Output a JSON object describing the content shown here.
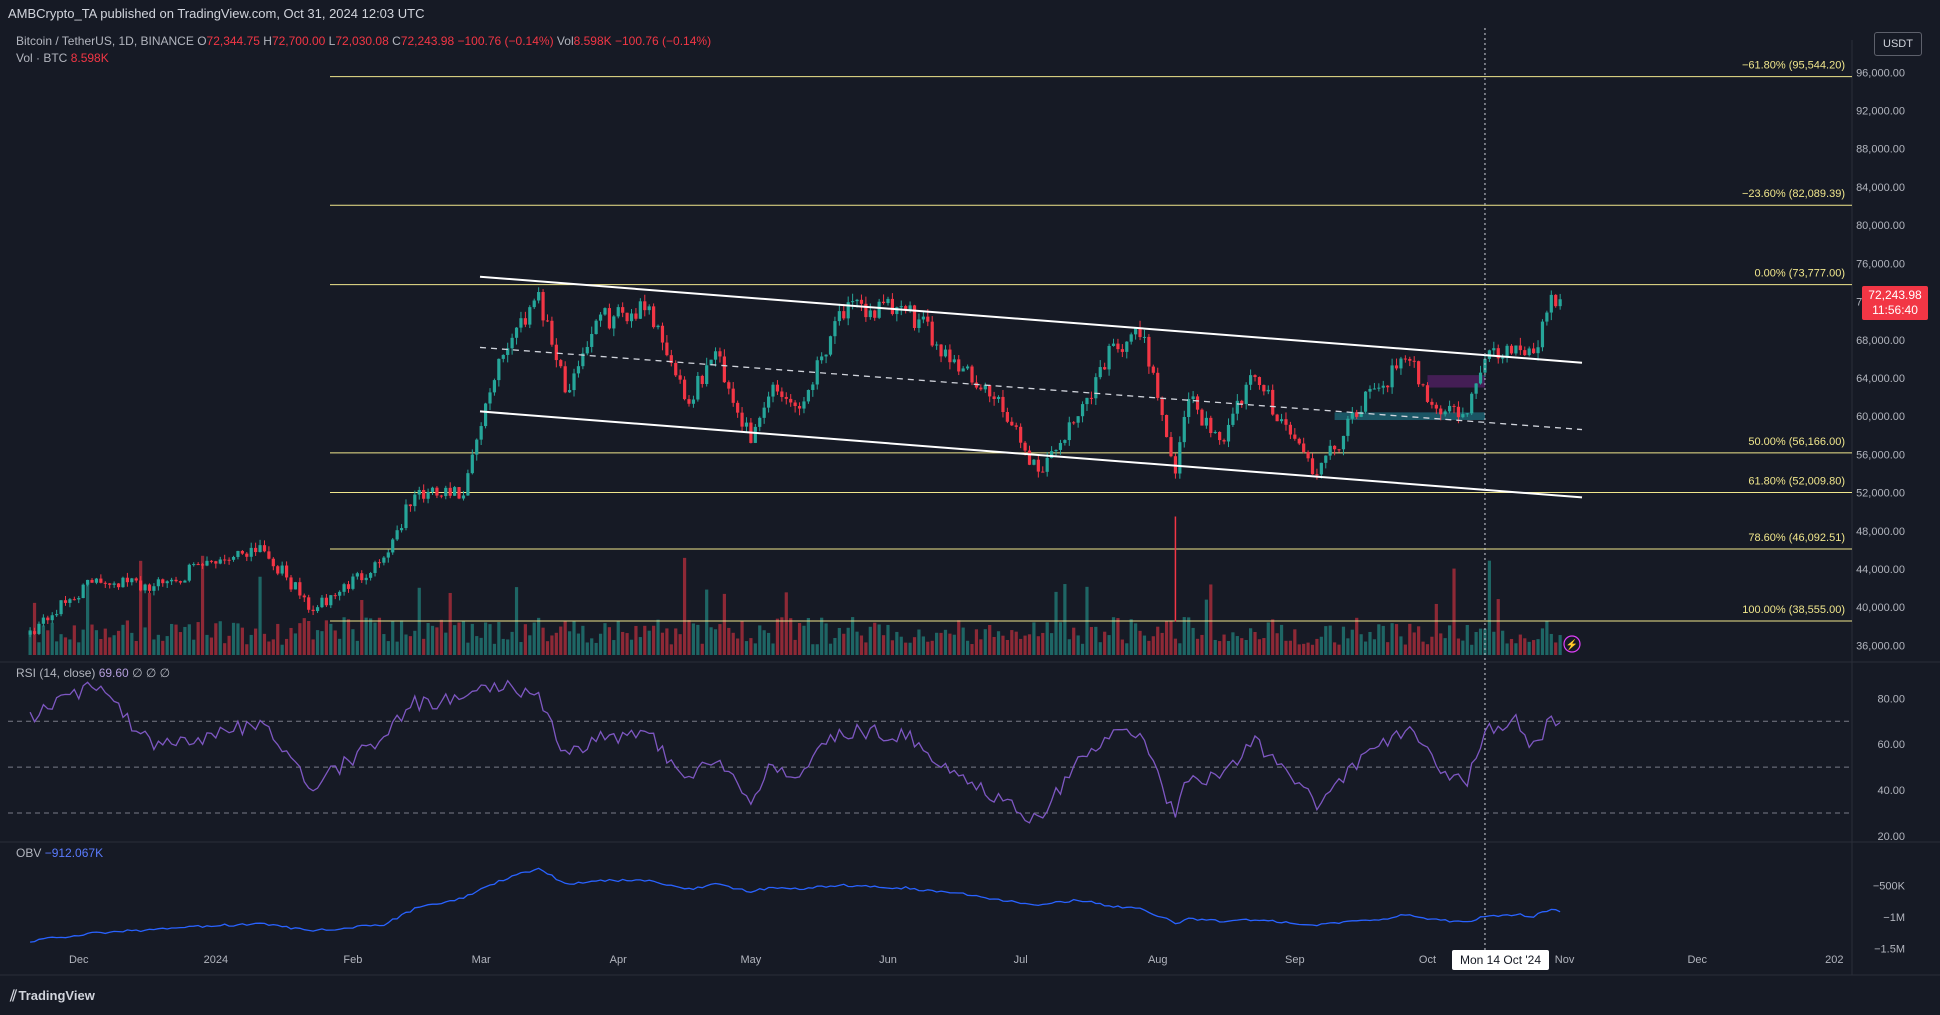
{
  "header": {
    "publisher": "AMBCrypto_TA published on TradingView.com, Oct 31, 2024 12:03 UTC"
  },
  "legend": {
    "symbol": "Bitcoin / TetherUS, 1D, BINANCE",
    "o_label": "O",
    "o": "72,344.75",
    "h_label": "H",
    "h": "72,700.00",
    "l_label": "L",
    "l": "72,030.08",
    "c_label": "C",
    "c": "72,243.98",
    "change": "−100.76 (−0.14%)",
    "vol_label": "Vol",
    "vol": "8.598K",
    "vol_change": "−100.76 (−0.14%)",
    "vol_series": "Vol · BTC",
    "vol_value": "8.598K",
    "rsi_label": "RSI (14, close)",
    "rsi_value": "69.60",
    "rsi_extra": "∅ ∅ ∅",
    "obv_label": "OBV",
    "obv_value": "−912.067K"
  },
  "axis": {
    "currency": "USDT",
    "last_price": "72,243.98",
    "countdown": "11:56:40",
    "hover_date": "Mon 14 Oct '24"
  },
  "branding": "TradingView",
  "colors": {
    "up": "#26a69a",
    "down": "#f23645",
    "fib": "#f0e68c",
    "rsi": "#7e57c2",
    "obv": "#2962ff",
    "bg": "#161a25"
  },
  "chart_data": {
    "type": "candlestick",
    "title": "Bitcoin / TetherUS, 1D, BINANCE",
    "x_ticks": [
      "Dec",
      "2024",
      "Feb",
      "Mar",
      "Apr",
      "May",
      "Jun",
      "Jul",
      "Aug",
      "Sep",
      "Oct",
      "Nov",
      "Dec",
      "202"
    ],
    "y_ticks": [
      "96,000.00",
      "92,000.00",
      "88,000.00",
      "84,000.00",
      "80,000.00",
      "76,000.00",
      "72,000.00",
      "68,000.00",
      "64,000.00",
      "60,000.00",
      "56,000.00",
      "52,000.00",
      "48,000.00",
      "44,000.00",
      "40,000.00",
      "36,000.00"
    ],
    "y_tick_values": [
      96000,
      92000,
      88000,
      84000,
      80000,
      76000,
      72000,
      68000,
      64000,
      60000,
      56000,
      52000,
      48000,
      44000,
      40000,
      36000
    ],
    "ylim": [
      35000,
      97500
    ],
    "fib_levels": [
      {
        "label": "−61.80% (95,544.20)",
        "value": 95544.2
      },
      {
        "label": "−23.60% (82,089.39)",
        "value": 82089.39
      },
      {
        "label": "0.00% (73,777.00)",
        "value": 73777
      },
      {
        "label": "50.00% (56,166.00)",
        "value": 56166
      },
      {
        "label": "61.80% (52,009.80)",
        "value": 52009.8
      },
      {
        "label": "78.60% (46,092.51)",
        "value": 46092.51
      },
      {
        "label": "100.00% (38,555.00)",
        "value": 38555
      }
    ],
    "channel": {
      "upper": [
        [
          1,
          "2024-03-01",
          74000
        ],
        [
          2,
          "2024-10-31",
          65700
        ]
      ],
      "lower": [
        [
          1,
          "2024-03-01",
          60300
        ],
        [
          2,
          "2024-10-31",
          51600
        ]
      ],
      "mid": [
        [
          1,
          "2024-03-01",
          67100
        ],
        [
          2,
          "2024-10-31",
          58600
        ]
      ]
    },
    "close_anchors": [
      [
        "2023-11-20",
        37500
      ],
      [
        "2023-12-05",
        43000
      ],
      [
        "2023-12-18",
        42200
      ],
      [
        "2024-01-02",
        45000
      ],
      [
        "2024-01-11",
        46500
      ],
      [
        "2024-01-23",
        39600
      ],
      [
        "2024-02-08",
        45200
      ],
      [
        "2024-02-15",
        51800
      ],
      [
        "2024-02-26",
        51700
      ],
      [
        "2024-03-05",
        66000
      ],
      [
        "2024-03-14",
        73000
      ],
      [
        "2024-03-20",
        62500
      ],
      [
        "2024-03-27",
        70000
      ],
      [
        "2024-04-08",
        71500
      ],
      [
        "2024-04-17",
        61300
      ],
      [
        "2024-04-23",
        66800
      ],
      [
        "2024-05-01",
        57200
      ],
      [
        "2024-05-06",
        63300
      ],
      [
        "2024-05-12",
        60800
      ],
      [
        "2024-05-21",
        71000
      ],
      [
        "2024-06-05",
        71100
      ],
      [
        "2024-06-18",
        65000
      ],
      [
        "2024-06-25",
        61800
      ],
      [
        "2024-07-05",
        54200
      ],
      [
        "2024-07-14",
        60000
      ],
      [
        "2024-07-22",
        67600
      ],
      [
        "2024-07-29",
        68300
      ],
      [
        "2024-08-05",
        54000
      ],
      [
        "2024-08-08",
        61800
      ],
      [
        "2024-08-15",
        57500
      ],
      [
        "2024-08-23",
        64100
      ],
      [
        "2024-09-06",
        53900
      ],
      [
        "2024-09-19",
        62900
      ],
      [
        "2024-09-27",
        65800
      ],
      [
        "2024-10-03",
        60800
      ],
      [
        "2024-10-10",
        60300
      ],
      [
        "2024-10-14",
        66000
      ],
      [
        "2024-10-21",
        67400
      ],
      [
        "2024-10-25",
        66600
      ],
      [
        "2024-10-29",
        72700
      ],
      [
        "2024-10-31",
        72243.98
      ]
    ],
    "zones": [
      {
        "name": "supply",
        "from": "2024-10-01",
        "to": "2024-10-14",
        "low": 63000,
        "high": 64300
      },
      {
        "name": "demand",
        "from": "2024-09-10",
        "to": "2024-10-14",
        "low": 59600,
        "high": 60400
      }
    ],
    "rsi": {
      "levels": [
        70,
        50,
        30
      ],
      "y_ticks": [
        "80.00",
        "60.00",
        "40.00",
        "20.00"
      ],
      "y_tick_values": [
        80,
        60,
        40,
        20
      ],
      "ylim": [
        20,
        88
      ],
      "last": 69.6,
      "anchors": [
        [
          "2023-11-20",
          72
        ],
        [
          "2023-12-05",
          86
        ],
        [
          "2023-12-18",
          58
        ],
        [
          "2024-01-02",
          64
        ],
        [
          "2024-01-11",
          70
        ],
        [
          "2024-01-23",
          42
        ],
        [
          "2024-02-08",
          64
        ],
        [
          "2024-02-15",
          78
        ],
        [
          "2024-02-26",
          80
        ],
        [
          "2024-03-05",
          86
        ],
        [
          "2024-03-14",
          82
        ],
        [
          "2024-03-20",
          55
        ],
        [
          "2024-03-27",
          63
        ],
        [
          "2024-04-08",
          64
        ],
        [
          "2024-04-17",
          43
        ],
        [
          "2024-04-23",
          55
        ],
        [
          "2024-05-01",
          35
        ],
        [
          "2024-05-06",
          52
        ],
        [
          "2024-05-12",
          46
        ],
        [
          "2024-05-21",
          66
        ],
        [
          "2024-06-05",
          64
        ],
        [
          "2024-06-18",
          45
        ],
        [
          "2024-06-25",
          37
        ],
        [
          "2024-07-05",
          27
        ],
        [
          "2024-07-14",
          53
        ],
        [
          "2024-07-22",
          64
        ],
        [
          "2024-07-29",
          62
        ],
        [
          "2024-08-05",
          27
        ],
        [
          "2024-08-08",
          47
        ],
        [
          "2024-08-15",
          44
        ],
        [
          "2024-08-23",
          61
        ],
        [
          "2024-09-06",
          34
        ],
        [
          "2024-09-19",
          58
        ],
        [
          "2024-09-27",
          67
        ],
        [
          "2024-10-03",
          50
        ],
        [
          "2024-10-10",
          44
        ],
        [
          "2024-10-14",
          66
        ],
        [
          "2024-10-21",
          71
        ],
        [
          "2024-10-25",
          58
        ],
        [
          "2024-10-29",
          72
        ],
        [
          "2024-10-31",
          69.6
        ]
      ]
    },
    "obv": {
      "y_ticks": [
        "−500K",
        "−1M",
        "−1.5M"
      ],
      "y_tick_values": [
        -500000,
        -1000000,
        -1500000
      ],
      "ylim": [
        -1600000,
        -100000
      ],
      "last": -912067,
      "anchors": [
        [
          "2023-11-20",
          -1380000
        ],
        [
          "2023-12-05",
          -1250000
        ],
        [
          "2023-12-18",
          -1200000
        ],
        [
          "2024-01-02",
          -1130000
        ],
        [
          "2024-01-11",
          -1110000
        ],
        [
          "2024-01-23",
          -1220000
        ],
        [
          "2024-02-08",
          -1120000
        ],
        [
          "2024-02-15",
          -870000
        ],
        [
          "2024-02-26",
          -700000
        ],
        [
          "2024-03-05",
          -430000
        ],
        [
          "2024-03-14",
          -230000
        ],
        [
          "2024-03-20",
          -480000
        ],
        [
          "2024-03-27",
          -420000
        ],
        [
          "2024-04-08",
          -420000
        ],
        [
          "2024-04-17",
          -560000
        ],
        [
          "2024-04-23",
          -480000
        ],
        [
          "2024-05-01",
          -600000
        ],
        [
          "2024-05-06",
          -530000
        ],
        [
          "2024-05-12",
          -560000
        ],
        [
          "2024-05-21",
          -500000
        ],
        [
          "2024-06-05",
          -540000
        ],
        [
          "2024-06-18",
          -640000
        ],
        [
          "2024-06-25",
          -720000
        ],
        [
          "2024-07-05",
          -800000
        ],
        [
          "2024-07-14",
          -730000
        ],
        [
          "2024-07-22",
          -840000
        ],
        [
          "2024-07-29",
          -880000
        ],
        [
          "2024-08-05",
          -1100000
        ],
        [
          "2024-08-08",
          -1030000
        ],
        [
          "2024-08-15",
          -1060000
        ],
        [
          "2024-08-23",
          -1050000
        ],
        [
          "2024-09-06",
          -1120000
        ],
        [
          "2024-09-19",
          -1050000
        ],
        [
          "2024-09-27",
          -960000
        ],
        [
          "2024-10-03",
          -1050000
        ],
        [
          "2024-10-10",
          -1080000
        ],
        [
          "2024-10-14",
          -980000
        ],
        [
          "2024-10-21",
          -960000
        ],
        [
          "2024-10-25",
          -990000
        ],
        [
          "2024-10-29",
          -880000
        ],
        [
          "2024-10-31",
          -912067
        ]
      ]
    },
    "x_date_ticks": [
      "2023-12-01",
      "2024-01-01",
      "2024-02-01",
      "2024-03-01",
      "2024-04-01",
      "2024-05-01",
      "2024-06-01",
      "2024-07-01",
      "2024-08-01",
      "2024-09-01",
      "2024-10-01",
      "2024-11-01",
      "2024-12-01",
      "2025-01-01"
    ],
    "xlim": [
      "2023-11-15",
      "2025-01-05"
    ]
  }
}
